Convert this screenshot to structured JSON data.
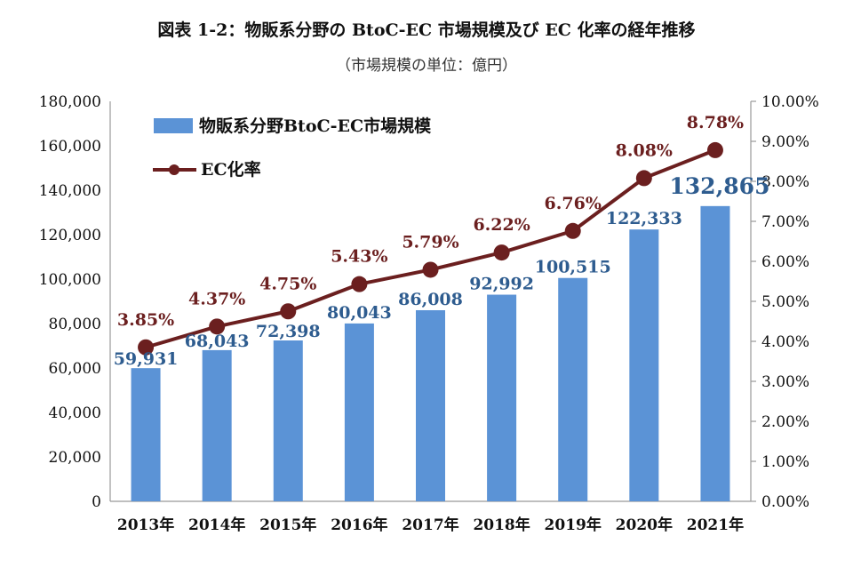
{
  "chart_data": {
    "type": "bar",
    "title": "図表 1-2：物販系分野の BtoC-EC 市場規模及び EC 化率の経年推移",
    "subtitle": "（市場規模の単位：億円）",
    "categories": [
      "2013年",
      "2014年",
      "2015年",
      "2016年",
      "2017年",
      "2018年",
      "2019年",
      "2020年",
      "2021年"
    ],
    "series": [
      {
        "name": "物販系分野BtoC-EC市場規模",
        "type": "bar",
        "axis": "left",
        "values": [
          59931,
          68043,
          72398,
          80043,
          86008,
          92992,
          100515,
          122333,
          132865
        ],
        "labels": [
          "59,931",
          "68,043",
          "72,398",
          "80,043",
          "86,008",
          "92,992",
          "100,515",
          "122,333",
          "132,865"
        ],
        "color": "#5b93d6",
        "label_color": "#2e5c8f"
      },
      {
        "name": "EC化率",
        "type": "line",
        "axis": "right",
        "values": [
          3.85,
          4.37,
          4.75,
          5.43,
          5.79,
          6.22,
          6.76,
          8.08,
          8.78
        ],
        "labels": [
          "3.85%",
          "4.37%",
          "4.75%",
          "5.43%",
          "5.79%",
          "6.22%",
          "6.76%",
          "8.08%",
          "8.78%"
        ],
        "color": "#6b1f1f"
      }
    ],
    "y_left": {
      "min": 0,
      "max": 180000,
      "ticks": [
        "0",
        "20,000",
        "40,000",
        "60,000",
        "80,000",
        "100,000",
        "120,000",
        "140,000",
        "160,000",
        "180,000"
      ]
    },
    "y_right": {
      "min": 0,
      "max": 10,
      "ticks": [
        "0.00%",
        "1.00%",
        "2.00%",
        "3.00%",
        "4.00%",
        "5.00%",
        "6.00%",
        "7.00%",
        "8.00%",
        "9.00%",
        "10.00%"
      ]
    },
    "grid": false,
    "legend": "top-left"
  }
}
